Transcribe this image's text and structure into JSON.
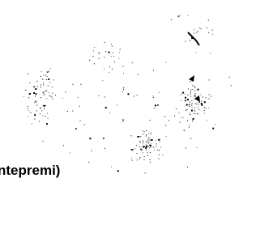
{
  "caption": "ntepremi)"
}
